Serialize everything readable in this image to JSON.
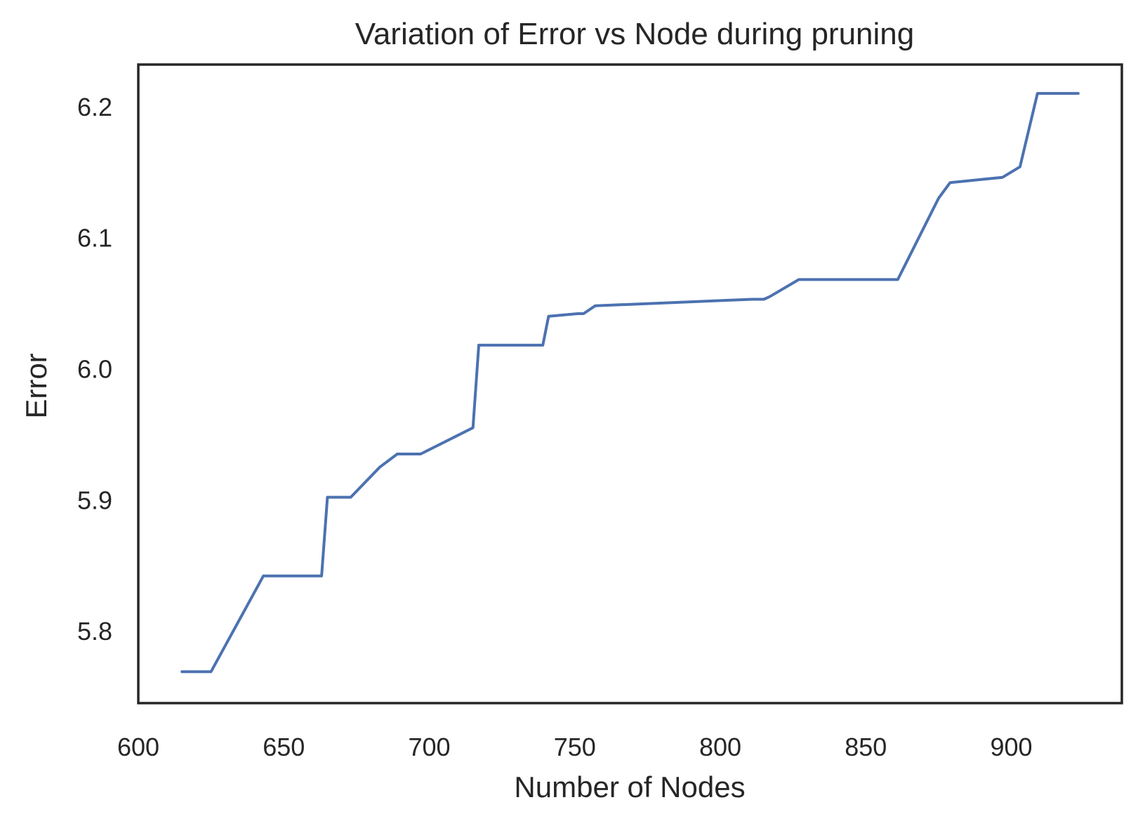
{
  "chart_data": {
    "type": "line",
    "title": "Variation of Error vs Node during pruning",
    "xlabel": "Number of Nodes",
    "ylabel": "Error",
    "xlim": [
      600,
      938
    ],
    "ylim": [
      5.745,
      6.232
    ],
    "xticks": [
      600,
      650,
      700,
      750,
      800,
      850,
      900
    ],
    "yticks": [
      5.8,
      5.9,
      6.0,
      6.1,
      6.2
    ],
    "ytick_labels": [
      "5.8",
      "5.9",
      "6.0",
      "6.1",
      "6.2"
    ],
    "grid": false,
    "series": [
      {
        "color": "#4c72b0",
        "x": [
          615,
          625,
          643,
          663,
          665,
          673,
          683,
          689,
          697,
          715,
          717,
          739,
          741,
          751,
          753,
          757,
          811,
          815,
          817,
          827,
          861,
          875,
          879,
          897,
          903,
          909,
          923
        ],
        "y": [
          5.769,
          5.769,
          5.842,
          5.842,
          5.902,
          5.902,
          5.925,
          5.935,
          5.935,
          5.955,
          6.018,
          6.018,
          6.04,
          6.042,
          6.042,
          6.048,
          6.053,
          6.053,
          6.055,
          6.068,
          6.068,
          6.13,
          6.142,
          6.146,
          6.154,
          6.21,
          6.21
        ]
      }
    ]
  }
}
